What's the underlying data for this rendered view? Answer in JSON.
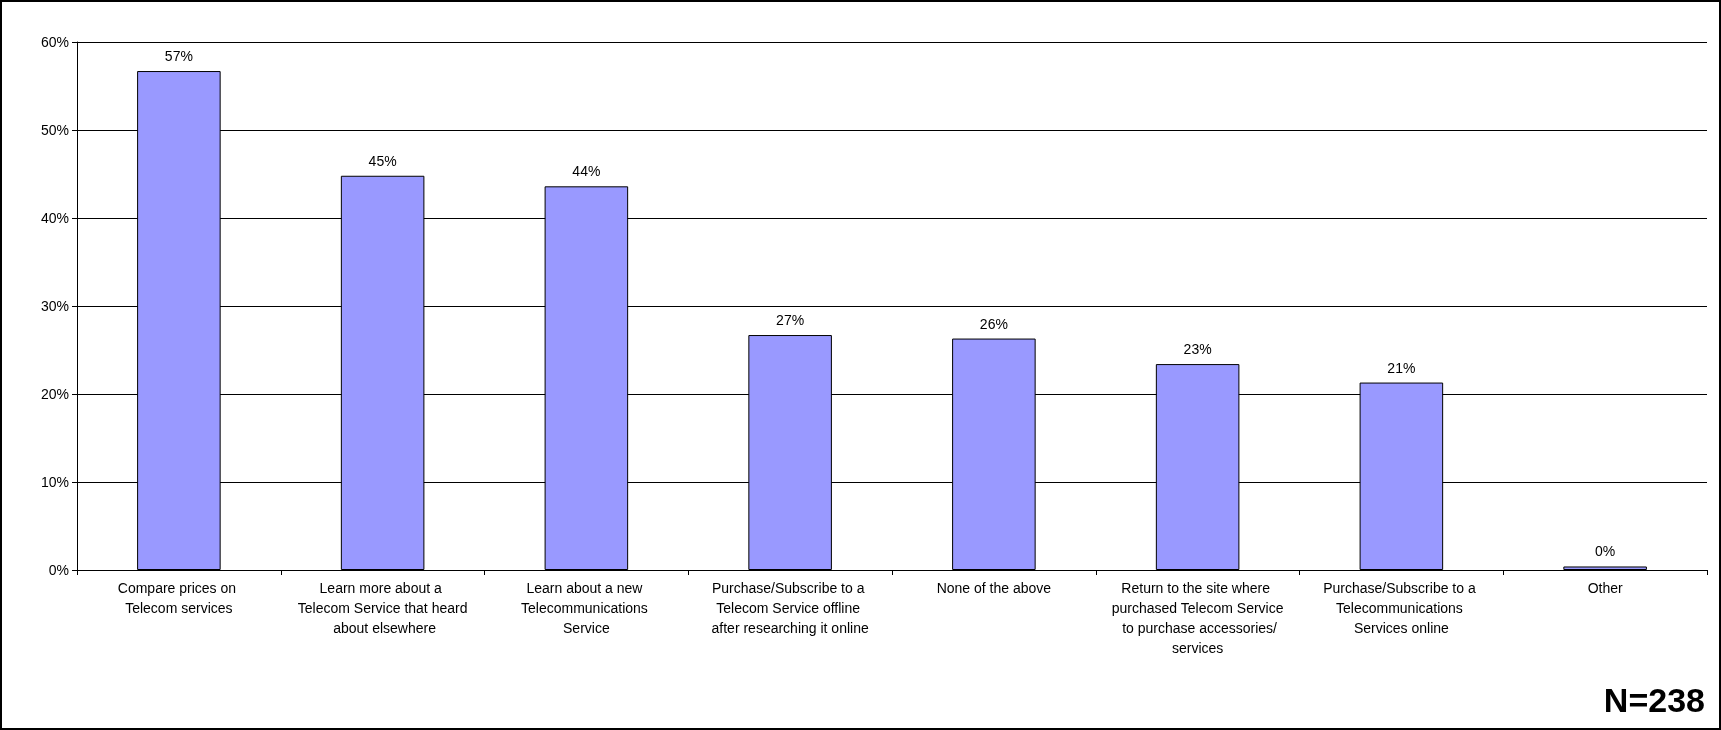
{
  "chart_data": {
    "type": "bar",
    "categories": [
      "Compare prices on Telecom services",
      "Learn more about a Telecom Service that heard about elsewhere",
      "Learn about a new Telecommunications Service",
      "Purchase/Subscribe to a Telecom Service offline after researching it online",
      "None of the above",
      "Return to the site where purchased Telecom Service to purchase accessories/services",
      "Purchase/Subscribe to a Telecommunications Services online",
      "Other"
    ],
    "values": [
      56.7,
      44.8,
      43.6,
      26.7,
      26.3,
      23.4,
      21.3,
      0.4
    ],
    "value_labels": [
      "57%",
      "45%",
      "44%",
      "27%",
      "26%",
      "23%",
      "21%",
      "0%"
    ],
    "color": "#9999ff",
    "ylim": [
      0,
      60
    ],
    "yticks": [
      {
        "value": 0,
        "label": "0%"
      },
      {
        "value": 10,
        "label": "10%"
      },
      {
        "value": 20,
        "label": "20%"
      },
      {
        "value": 30,
        "label": "30%"
      },
      {
        "value": 40,
        "label": "40%"
      },
      {
        "value": 50,
        "label": "50%"
      },
      {
        "value": 60,
        "label": "60%"
      }
    ],
    "grid": "y",
    "annotations": [
      "N=238"
    ]
  }
}
